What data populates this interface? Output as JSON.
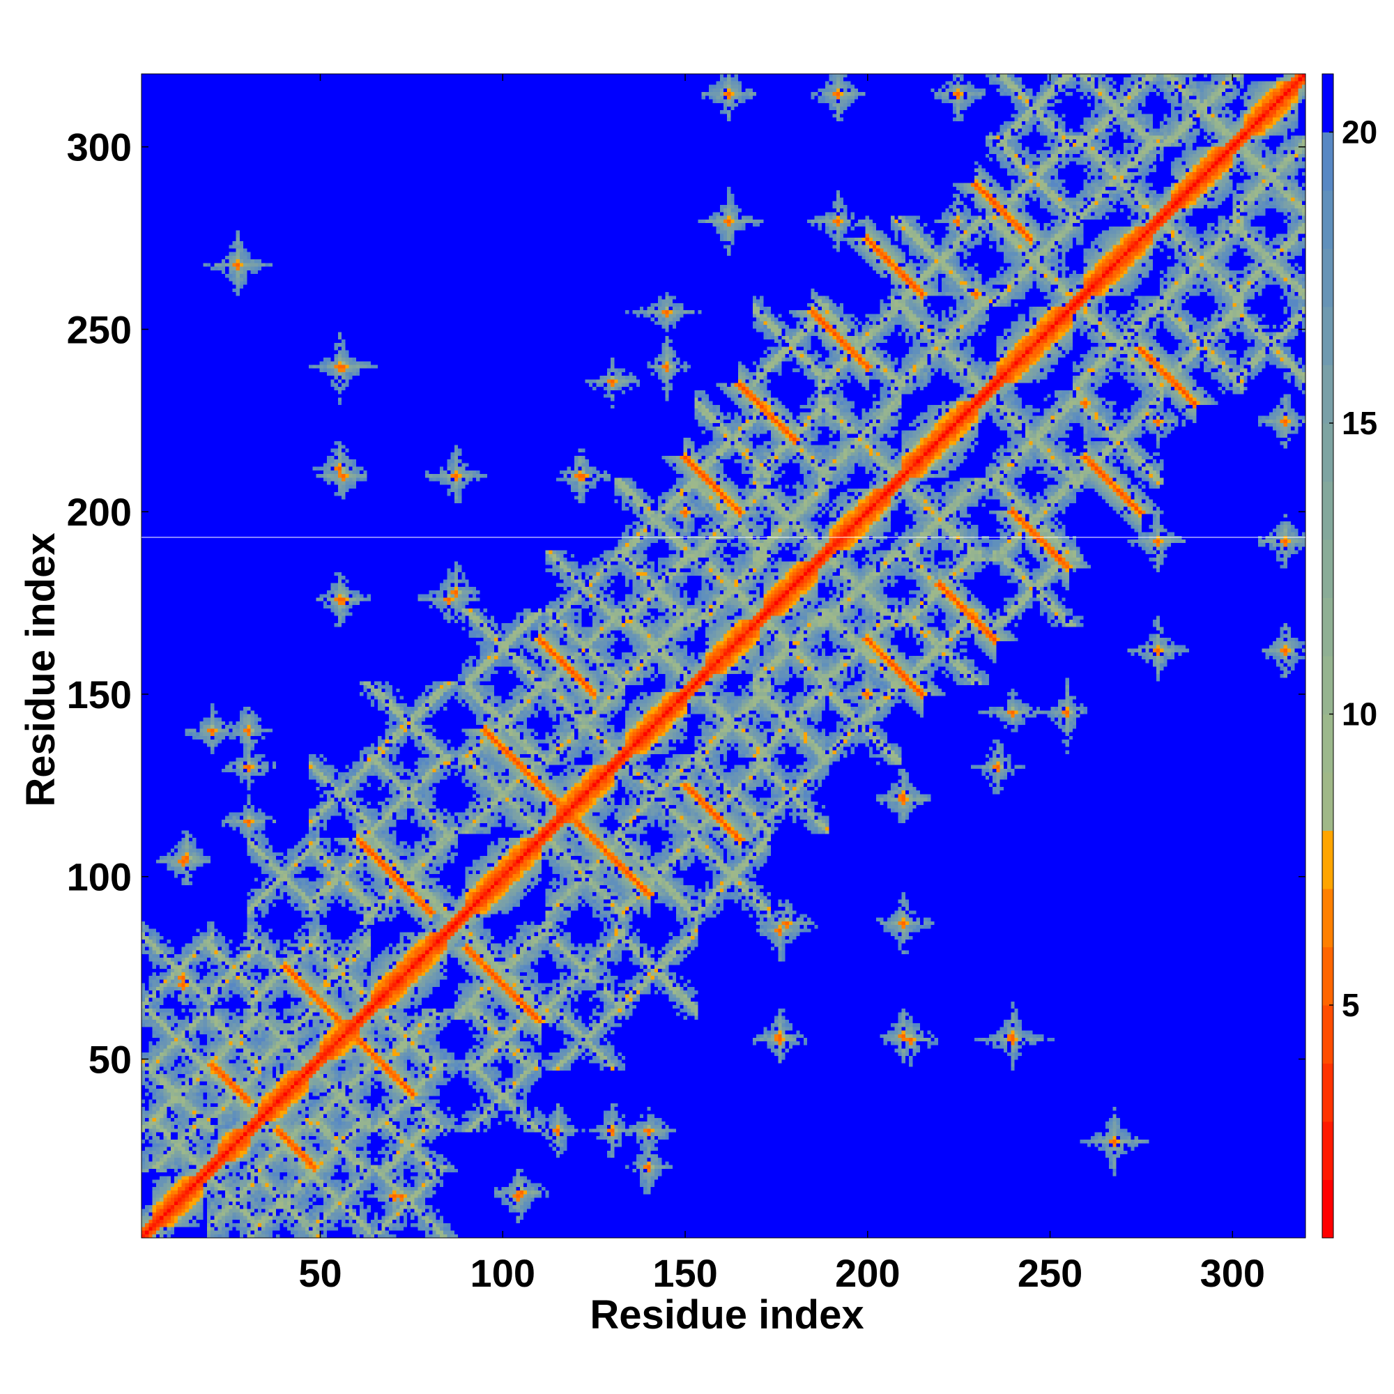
{
  "chart_data": {
    "type": "heatmap",
    "title": "",
    "xlabel": "Residue index",
    "ylabel": "Residue index",
    "n_residues": 320,
    "xlim": [
      1,
      320
    ],
    "ylim": [
      1,
      320
    ],
    "x_ticks": [
      50,
      100,
      150,
      200,
      250,
      300
    ],
    "y_ticks": [
      50,
      100,
      150,
      200,
      250,
      300
    ],
    "x_tick_labels": [
      "50",
      "100",
      "150",
      "200",
      "250",
      "300"
    ],
    "y_tick_labels": [
      "50",
      "100",
      "150",
      "200",
      "250",
      "300"
    ],
    "colorbar": {
      "range": [
        1,
        21
      ],
      "ticks": [
        5,
        10,
        15,
        20
      ],
      "tick_labels": [
        "5",
        "10",
        "15",
        "20"
      ],
      "levels": [
        {
          "max": 2,
          "color": "#ff0000"
        },
        {
          "max": 3,
          "color": "#ff1a00"
        },
        {
          "max": 4,
          "color": "#ff3300"
        },
        {
          "max": 5,
          "color": "#ff4d00"
        },
        {
          "max": 6,
          "color": "#ff6600"
        },
        {
          "max": 7,
          "color": "#ff8000"
        },
        {
          "max": 8,
          "color": "#ffa500"
        },
        {
          "max": 9,
          "color": "#a0b888"
        },
        {
          "max": 10,
          "color": "#9cb88c"
        },
        {
          "max": 11,
          "color": "#96b490"
        },
        {
          "max": 12,
          "color": "#90b094"
        },
        {
          "max": 13,
          "color": "#8aac98"
        },
        {
          "max": 14,
          "color": "#84a89c"
        },
        {
          "max": 15,
          "color": "#7ea4a2"
        },
        {
          "max": 16,
          "color": "#7aa0a8"
        },
        {
          "max": 17,
          "color": "#709ab0"
        },
        {
          "max": 18,
          "color": "#6894b6"
        },
        {
          "max": 19,
          "color": "#6090bc"
        },
        {
          "max": 20,
          "color": "#5888c4"
        },
        {
          "max": 21,
          "color": "#0000ff"
        }
      ]
    },
    "background_value": 21,
    "background_color": "#0000ff",
    "secondary_structure": {
      "helices": [
        [
          4,
          17
        ],
        [
          22,
          30
        ],
        [
          33,
          46
        ],
        [
          50,
          60
        ],
        [
          64,
          84
        ],
        [
          90,
          110
        ],
        [
          115,
          130
        ],
        [
          134,
          150
        ],
        [
          156,
          170
        ],
        [
          172,
          186
        ],
        [
          190,
          206
        ],
        [
          210,
          230
        ],
        [
          236,
          256
        ],
        [
          260,
          278
        ],
        [
          284,
          300
        ],
        [
          304,
          318
        ]
      ],
      "strand_pairs": [
        {
          "i": [
            40,
            55
          ],
          "j": [
            60,
            75
          ]
        },
        {
          "i": [
            60,
            80
          ],
          "j": [
            90,
            110
          ]
        },
        {
          "i": [
            95,
            115
          ],
          "j": [
            120,
            140
          ]
        },
        {
          "i": [
            110,
            125
          ],
          "j": [
            150,
            165
          ]
        },
        {
          "i": [
            150,
            165
          ],
          "j": [
            200,
            215
          ]
        },
        {
          "i": [
            165,
            180
          ],
          "j": [
            220,
            235
          ]
        },
        {
          "i": [
            185,
            200
          ],
          "j": [
            240,
            255
          ]
        },
        {
          "i": [
            200,
            215
          ],
          "j": [
            260,
            275
          ]
        },
        {
          "i": [
            230,
            245
          ],
          "j": [
            275,
            290
          ]
        },
        {
          "i": [
            20,
            30
          ],
          "j": [
            35,
            48
          ]
        }
      ]
    },
    "contact_islands": [
      {
        "x": 13,
        "y": 105,
        "r": 5
      },
      {
        "x": 12,
        "y": 72,
        "r": 5
      },
      {
        "x": 27,
        "y": 268,
        "r": 7
      },
      {
        "x": 55,
        "y": 240,
        "r": 9
      },
      {
        "x": 55,
        "y": 212,
        "r": 5
      },
      {
        "x": 55,
        "y": 176,
        "r": 5
      },
      {
        "x": 87,
        "y": 210,
        "r": 6
      },
      {
        "x": 87,
        "y": 178,
        "r": 6
      },
      {
        "x": 70,
        "y": 12,
        "r": 5
      },
      {
        "x": 104,
        "y": 12,
        "r": 5
      },
      {
        "x": 121,
        "y": 210,
        "r": 5
      },
      {
        "x": 145,
        "y": 240,
        "r": 9
      },
      {
        "x": 162,
        "y": 280,
        "r": 7
      },
      {
        "x": 162,
        "y": 315,
        "r": 5
      },
      {
        "x": 176,
        "y": 85,
        "r": 6
      },
      {
        "x": 176,
        "y": 56,
        "r": 5
      },
      {
        "x": 192,
        "y": 280,
        "r": 6
      },
      {
        "x": 192,
        "y": 315,
        "r": 5
      },
      {
        "x": 210,
        "y": 87,
        "r": 6
      },
      {
        "x": 210,
        "y": 122,
        "r": 5
      },
      {
        "x": 210,
        "y": 56,
        "r": 5
      },
      {
        "x": 225,
        "y": 280,
        "r": 5
      },
      {
        "x": 225,
        "y": 315,
        "r": 5
      },
      {
        "x": 240,
        "y": 56,
        "r": 7
      },
      {
        "x": 255,
        "y": 145,
        "r": 9
      },
      {
        "x": 268,
        "y": 27,
        "r": 7
      },
      {
        "x": 280,
        "y": 162,
        "r": 7
      },
      {
        "x": 280,
        "y": 192,
        "r": 6
      },
      {
        "x": 315,
        "y": 162,
        "r": 5
      },
      {
        "x": 315,
        "y": 192,
        "r": 5
      },
      {
        "x": 315,
        "y": 225,
        "r": 5
      },
      {
        "x": 115,
        "y": 30,
        "r": 5
      },
      {
        "x": 130,
        "y": 30,
        "r": 5
      },
      {
        "x": 140,
        "y": 20,
        "r": 5
      },
      {
        "x": 30,
        "y": 140,
        "r": 5
      },
      {
        "x": 236,
        "y": 130,
        "r": 5
      },
      {
        "x": 150,
        "y": 200,
        "r": 6
      },
      {
        "x": 200,
        "y": 150,
        "r": 6
      },
      {
        "x": 260,
        "y": 230,
        "r": 6
      },
      {
        "x": 230,
        "y": 260,
        "r": 6
      }
    ]
  }
}
